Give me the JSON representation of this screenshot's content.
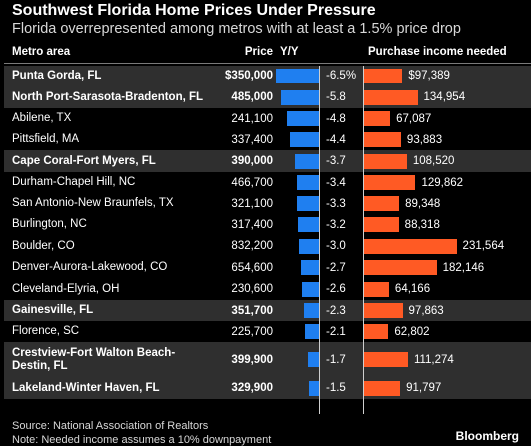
{
  "chart_data": {
    "type": "table",
    "title": "Southwest Florida Home Prices Under Pressure",
    "subtitle": "Florida overrepresented among metros with at least a 1.5% price drop",
    "columns": [
      "Metro area",
      "Price",
      "Y/Y",
      "Purchase income needed"
    ],
    "rows": [
      {
        "metro": "Punta Gorda, FL",
        "price": "$350,000",
        "yy": -6.5,
        "yy_label": "-6.5%",
        "income": 97389,
        "income_label": "$97,389",
        "highlight": true
      },
      {
        "metro": "North Port-Sarasota-Bradenton, FL",
        "price": "485,000",
        "yy": -5.8,
        "yy_label": "-5.8",
        "income": 134954,
        "income_label": "134,954",
        "highlight": true
      },
      {
        "metro": "Abilene, TX",
        "price": "241,100",
        "yy": -4.8,
        "yy_label": "-4.8",
        "income": 67087,
        "income_label": "67,087",
        "highlight": false
      },
      {
        "metro": "Pittsfield, MA",
        "price": "337,400",
        "yy": -4.4,
        "yy_label": "-4.4",
        "income": 93883,
        "income_label": "93,883",
        "highlight": false
      },
      {
        "metro": "Cape Coral-Fort Myers, FL",
        "price": "390,000",
        "yy": -3.7,
        "yy_label": "-3.7",
        "income": 108520,
        "income_label": "108,520",
        "highlight": true
      },
      {
        "metro": "Durham-Chapel Hill, NC",
        "price": "466,700",
        "yy": -3.4,
        "yy_label": "-3.4",
        "income": 129862,
        "income_label": "129,862",
        "highlight": false
      },
      {
        "metro": "San Antonio-New Braunfels, TX",
        "price": "321,100",
        "yy": -3.3,
        "yy_label": "-3.3",
        "income": 89348,
        "income_label": "89,348",
        "highlight": false
      },
      {
        "metro": "Burlington, NC",
        "price": "317,400",
        "yy": -3.2,
        "yy_label": "-3.2",
        "income": 88318,
        "income_label": "88,318",
        "highlight": false
      },
      {
        "metro": "Boulder, CO",
        "price": "832,200",
        "yy": -3.0,
        "yy_label": "-3.0",
        "income": 231564,
        "income_label": "231,564",
        "highlight": false
      },
      {
        "metro": "Denver-Aurora-Lakewood, CO",
        "price": "654,600",
        "yy": -2.7,
        "yy_label": "-2.7",
        "income": 182146,
        "income_label": "182,146",
        "highlight": false
      },
      {
        "metro": "Cleveland-Elyria, OH",
        "price": "230,600",
        "yy": -2.6,
        "yy_label": "-2.6",
        "income": 64166,
        "income_label": "64,166",
        "highlight": false
      },
      {
        "metro": "Gainesville, FL",
        "price": "351,700",
        "yy": -2.3,
        "yy_label": "-2.3",
        "income": 97863,
        "income_label": "97,863",
        "highlight": true
      },
      {
        "metro": "Florence, SC",
        "price": "225,700",
        "yy": -2.1,
        "yy_label": "-2.1",
        "income": 62802,
        "income_label": "62,802",
        "highlight": false
      },
      {
        "metro": "Crestview-Fort Walton Beach-Destin, FL",
        "price": "399,900",
        "yy": -1.7,
        "yy_label": "-1.7",
        "income": 111274,
        "income_label": "111,274",
        "highlight": true
      },
      {
        "metro": "Lakeland-Winter Haven, FL",
        "price": "329,900",
        "yy": -1.5,
        "yy_label": "-1.5",
        "income": 91797,
        "income_label": "91,797",
        "highlight": true
      }
    ],
    "colors": {
      "yy_bar": "#1f7ff0",
      "income_bar": "#ff5a24",
      "highlight_row": "#2f2f2f"
    }
  },
  "footer": {
    "source": "Source: National Association of Realtors",
    "note": "Note: Needed income assumes a 10% downpayment",
    "brand": "Bloomberg"
  }
}
